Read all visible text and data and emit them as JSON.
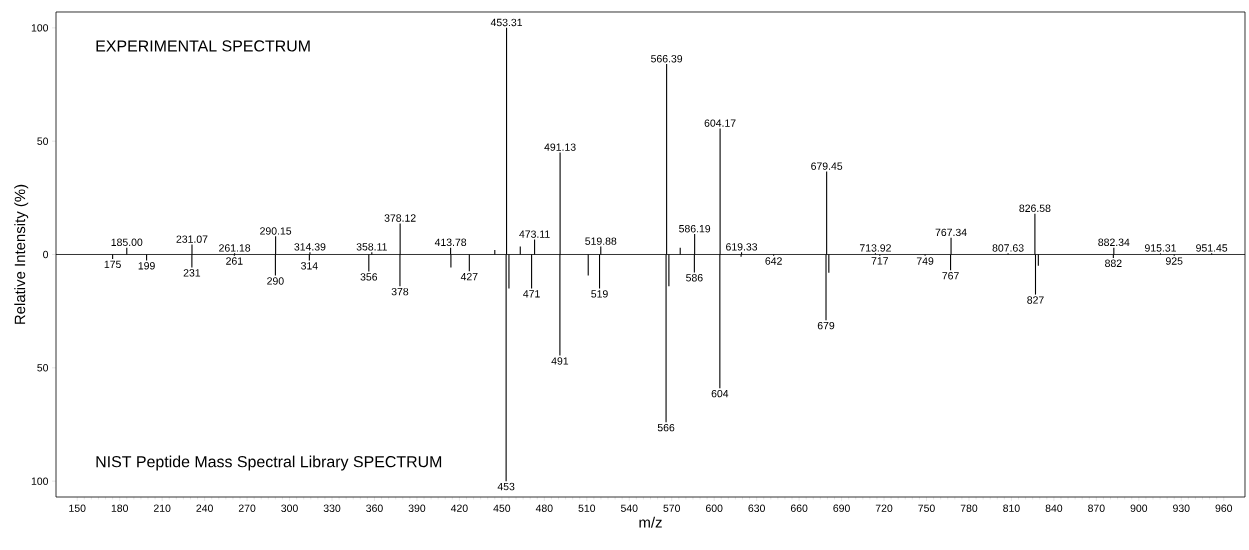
{
  "chart_data": {
    "type": "bar",
    "xlabel": "m/z",
    "ylabel": "Relative Intensity (%)",
    "xlim": [
      135,
      975
    ],
    "ylim": [
      -107,
      107
    ],
    "xticks": [
      150,
      180,
      210,
      240,
      270,
      300,
      330,
      360,
      390,
      420,
      450,
      480,
      510,
      540,
      570,
      600,
      630,
      660,
      690,
      720,
      750,
      780,
      810,
      840,
      870,
      900,
      930,
      960
    ],
    "yticks": [
      {
        "value": -100,
        "label": "100"
      },
      {
        "value": -50,
        "label": "50"
      },
      0,
      50,
      100
    ],
    "grid": false,
    "ref_lines": [
      {
        "axis": "y",
        "value": 0,
        "color": "#000000"
      }
    ],
    "series": [
      {
        "color": "#000000",
        "x": [
          175,
          185.0,
          199,
          231,
          231.07,
          261,
          261.18,
          290,
          290.15,
          314,
          314.39,
          356,
          358.11,
          378,
          378.12,
          413.78,
          414,
          427,
          445,
          453,
          453.31,
          455,
          463,
          471,
          473.11,
          491,
          491.13,
          511,
          519,
          519.88,
          566,
          566.39,
          568,
          576,
          586,
          586.19,
          604,
          604.17,
          619,
          619.33,
          642,
          679,
          679.45,
          681,
          713.92,
          717,
          749,
          767,
          767.34,
          807.63,
          826.58,
          827,
          829,
          882,
          882.34,
          915.31,
          925,
          951.45
        ],
        "values": [
          -2,
          3,
          -2.6,
          -5.7,
          4.4,
          -0.5,
          0.5,
          -9.3,
          8,
          -2.6,
          1,
          -7.5,
          1,
          -14,
          13.7,
          3,
          -5.7,
          -7.4,
          2,
          -100,
          100,
          -15,
          3.5,
          -15,
          6.6,
          -44.6,
          45,
          -9.3,
          -15,
          3.5,
          -74,
          84,
          -14,
          3,
          -7.9,
          9,
          -59,
          55.6,
          -1,
          1,
          -0.5,
          -29,
          36.6,
          -8,
          0.5,
          -0.5,
          -0.5,
          -7,
          7.4,
          0.5,
          18,
          -17.7,
          -5,
          -1.5,
          3,
          0.5,
          -0.5,
          0.5
        ]
      }
    ],
    "annotations": [
      "EXPERIMENTAL SPECTRUM",
      "NIST Peptide Mass Spectral Library SPECTRUM",
      {
        "text": "185.00",
        "x": 185.0,
        "y": 3
      },
      {
        "text": "231.07",
        "x": 231.07,
        "y": 4.4
      },
      {
        "text": "261.18",
        "x": 261.18,
        "y": 0.5
      },
      {
        "text": "290.15",
        "x": 290.15,
        "y": 8
      },
      {
        "text": "314.39",
        "x": 314.39,
        "y": 1
      },
      {
        "text": "358.11",
        "x": 358.11,
        "y": 1
      },
      {
        "text": "378.12",
        "x": 378.12,
        "y": 13.7
      },
      {
        "text": "413.78",
        "x": 413.78,
        "y": 3
      },
      {
        "text": "453.31",
        "x": 453.31,
        "y": 100
      },
      {
        "text": "473.11",
        "x": 473.11,
        "y": 6.6
      },
      {
        "text": "491.13",
        "x": 491.13,
        "y": 45
      },
      {
        "text": "519.88",
        "x": 519.88,
        "y": 3.5
      },
      {
        "text": "566.39",
        "x": 566.39,
        "y": 84
      },
      {
        "text": "586.19",
        "x": 586.19,
        "y": 9
      },
      {
        "text": "604.17",
        "x": 604.17,
        "y": 55.6
      },
      {
        "text": "619.33",
        "x": 619.33,
        "y": 1
      },
      {
        "text": "679.45",
        "x": 679.45,
        "y": 36.6
      },
      {
        "text": "713.92",
        "x": 713.92,
        "y": 0.5
      },
      {
        "text": "767.34",
        "x": 767.34,
        "y": 7.4
      },
      {
        "text": "807.63",
        "x": 807.63,
        "y": 0.5
      },
      {
        "text": "826.58",
        "x": 826.58,
        "y": 18
      },
      {
        "text": "882.34",
        "x": 882.34,
        "y": 3
      },
      {
        "text": "915.31",
        "x": 915.31,
        "y": 0.5
      },
      {
        "text": "951.45",
        "x": 951.45,
        "y": 0.5
      },
      {
        "text": "175",
        "x": 175,
        "y": -2
      },
      {
        "text": "199",
        "x": 199,
        "y": -2.6
      },
      {
        "text": "231",
        "x": 231,
        "y": -5.7
      },
      {
        "text": "261",
        "x": 261,
        "y": -0.5
      },
      {
        "text": "290",
        "x": 290,
        "y": -9.3
      },
      {
        "text": "314",
        "x": 314,
        "y": -2.6
      },
      {
        "text": "356",
        "x": 356,
        "y": -7.5
      },
      {
        "text": "378",
        "x": 378,
        "y": -14
      },
      {
        "text": "427",
        "x": 427,
        "y": -7.4
      },
      {
        "text": "453",
        "x": 453,
        "y": -100
      },
      {
        "text": "471",
        "x": 471,
        "y": -15
      },
      {
        "text": "491",
        "x": 491,
        "y": -44.6
      },
      {
        "text": "519",
        "x": 519,
        "y": -15
      },
      {
        "text": "566",
        "x": 566,
        "y": -74
      },
      {
        "text": "586",
        "x": 586,
        "y": -7.9
      },
      {
        "text": "604",
        "x": 604,
        "y": -59
      },
      {
        "text": "642",
        "x": 642,
        "y": -0.5
      },
      {
        "text": "679",
        "x": 679,
        "y": -29
      },
      {
        "text": "717",
        "x": 717,
        "y": -0.5
      },
      {
        "text": "749",
        "x": 749,
        "y": -0.5
      },
      {
        "text": "767",
        "x": 767,
        "y": -7
      },
      {
        "text": "827",
        "x": 827,
        "y": -17.7
      },
      {
        "text": "882",
        "x": 882,
        "y": -1.5
      },
      {
        "text": "925",
        "x": 925,
        "y": -0.5
      }
    ]
  }
}
